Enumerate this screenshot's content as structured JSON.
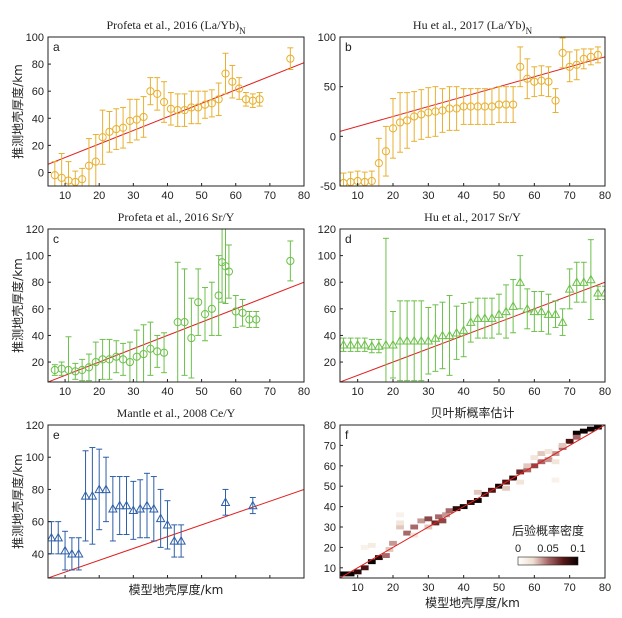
{
  "figure": {
    "y_axis_label": "推测地壳厚度/km",
    "x_axis_label": "模型地壳厚度/km",
    "colorbar": {
      "title": "后验概率密度",
      "ticks": [
        "0",
        "0.05",
        "0.1"
      ]
    },
    "colors": {
      "orange": "#E8B030",
      "green": "#6CC04A",
      "blue": "#2E5FA8",
      "red": "#E02020"
    }
  },
  "chart_data": [
    {
      "panel": "a",
      "type": "scatter",
      "marker": "circle",
      "color": "#E8B030",
      "title": "Profeta et al., 2016 (La/Yb)",
      "title_sub": "N",
      "xlim": [
        5,
        80
      ],
      "ylim": [
        -10,
        100
      ],
      "xticks": [
        10,
        20,
        30,
        40,
        50,
        60,
        70,
        80
      ],
      "yticks": [
        0,
        20,
        40,
        60,
        80,
        100
      ],
      "show_x_tick_labels": true,
      "show_x_label": false,
      "show_y_label": true,
      "x": [
        7,
        9,
        11,
        13,
        15,
        17,
        19,
        21,
        23,
        25,
        27,
        29,
        31,
        33,
        35,
        37,
        39,
        41,
        43,
        45,
        47,
        49,
        51,
        53,
        55,
        57,
        59,
        61,
        63,
        65,
        67,
        76
      ],
      "y": [
        -2,
        -4,
        -6,
        -7,
        -5,
        5,
        8,
        26,
        30,
        32,
        33,
        38,
        39,
        41,
        60,
        58,
        52,
        47,
        46,
        46,
        48,
        48,
        50,
        51,
        54,
        73,
        67,
        62,
        54,
        53,
        54,
        84
      ],
      "err": [
        10,
        18,
        14,
        8,
        8,
        20,
        20,
        20,
        15,
        15,
        15,
        16,
        15,
        15,
        10,
        12,
        15,
        12,
        12,
        12,
        12,
        12,
        10,
        10,
        12,
        15,
        12,
        8,
        5,
        5,
        5,
        8
      ],
      "fit_line": [
        [
          5,
          6
        ],
        [
          80,
          81
        ]
      ]
    },
    {
      "panel": "b",
      "type": "scatter",
      "marker": "circle",
      "color": "#E8B030",
      "title": "Hu et al., 2017 (La/Yb)",
      "title_sub": "N",
      "xlim": [
        5,
        80
      ],
      "ylim": [
        -50,
        100
      ],
      "xticks": [
        10,
        20,
        30,
        40,
        50,
        60,
        70,
        80
      ],
      "yticks": [
        -50,
        0,
        50,
        100
      ],
      "show_x_tick_labels": true,
      "show_x_label": false,
      "show_y_label": false,
      "x": [
        6,
        8,
        10,
        12,
        14,
        16,
        18,
        20,
        22,
        24,
        26,
        28,
        30,
        32,
        34,
        36,
        38,
        40,
        42,
        44,
        46,
        48,
        50,
        52,
        54,
        56,
        58,
        60,
        62,
        64,
        66,
        68,
        70,
        72,
        74,
        76,
        78
      ],
      "y": [
        -47,
        -46,
        -45,
        -46,
        -45,
        -27,
        -15,
        8,
        14,
        16,
        20,
        22,
        24,
        25,
        26,
        28,
        28,
        30,
        30,
        30,
        30,
        30,
        32,
        32,
        32,
        70,
        58,
        55,
        56,
        55,
        36,
        84,
        70,
        72,
        78,
        80,
        82
      ],
      "err": [
        10,
        10,
        10,
        10,
        10,
        25,
        25,
        30,
        30,
        28,
        25,
        25,
        25,
        25,
        22,
        22,
        22,
        18,
        18,
        18,
        18,
        18,
        18,
        18,
        18,
        20,
        20,
        15,
        15,
        15,
        12,
        15,
        15,
        15,
        10,
        8,
        8
      ],
      "fit_line": [
        [
          5,
          5
        ],
        [
          80,
          80
        ]
      ]
    },
    {
      "panel": "c",
      "type": "scatter",
      "marker": "circle",
      "color": "#6CC04A",
      "title": "Profeta et al., 2016 Sr/Y",
      "xlim": [
        5,
        80
      ],
      "ylim": [
        5,
        120
      ],
      "xticks": [
        10,
        20,
        30,
        40,
        50,
        60,
        70,
        80
      ],
      "yticks": [
        20,
        40,
        60,
        80,
        100,
        120
      ],
      "show_x_tick_labels": true,
      "show_x_label": false,
      "show_y_label": true,
      "x": [
        7,
        9,
        11,
        13,
        15,
        17,
        19,
        21,
        23,
        25,
        27,
        29,
        31,
        33,
        35,
        37,
        39,
        43,
        45,
        47,
        49,
        51,
        53,
        55,
        56,
        57,
        58,
        60,
        62,
        64,
        66,
        76
      ],
      "y": [
        14,
        15,
        14,
        13,
        14,
        16,
        20,
        22,
        22,
        24,
        22,
        20,
        24,
        26,
        30,
        28,
        27,
        50,
        50,
        38,
        65,
        56,
        60,
        70,
        95,
        92,
        88,
        58,
        57,
        52,
        52,
        96
      ],
      "err": [
        4,
        5,
        25,
        6,
        8,
        10,
        15,
        15,
        15,
        12,
        12,
        15,
        20,
        22,
        20,
        12,
        15,
        45,
        40,
        30,
        25,
        20,
        20,
        30,
        30,
        28,
        20,
        12,
        10,
        6,
        6,
        15
      ],
      "fit_line": [
        [
          5,
          5
        ],
        [
          80,
          80
        ]
      ]
    },
    {
      "panel": "d",
      "type": "scatter",
      "marker": "triangle",
      "color": "#6CC04A",
      "title": "Hu et al., 2017 Sr/Y",
      "xlim": [
        5,
        80
      ],
      "ylim": [
        5,
        120
      ],
      "xticks": [
        10,
        20,
        30,
        40,
        50,
        60,
        70,
        80
      ],
      "yticks": [
        20,
        40,
        60,
        80,
        100,
        120
      ],
      "show_x_tick_labels": true,
      "show_x_label": false,
      "show_y_label": false,
      "x": [
        6,
        8,
        10,
        12,
        14,
        16,
        18,
        20,
        22,
        24,
        26,
        28,
        30,
        32,
        34,
        36,
        38,
        40,
        42,
        44,
        46,
        48,
        50,
        52,
        54,
        56,
        58,
        60,
        62,
        64,
        66,
        68,
        70,
        72,
        74,
        76,
        78,
        80
      ],
      "y": [
        33,
        33,
        33,
        33,
        32,
        32,
        33,
        33,
        36,
        36,
        36,
        36,
        36,
        38,
        40,
        40,
        42,
        44,
        50,
        53,
        53,
        53,
        56,
        58,
        62,
        80,
        60,
        58,
        58,
        56,
        56,
        50,
        75,
        80,
        80,
        82,
        72,
        72
      ],
      "err": [
        5,
        5,
        5,
        5,
        5,
        5,
        80,
        25,
        30,
        30,
        30,
        30,
        25,
        25,
        25,
        30,
        20,
        20,
        15,
        15,
        15,
        15,
        15,
        20,
        20,
        20,
        15,
        15,
        15,
        15,
        10,
        10,
        15,
        15,
        15,
        30,
        5,
        5
      ],
      "fit_line": [
        [
          5,
          5
        ],
        [
          80,
          80
        ]
      ]
    },
    {
      "panel": "e",
      "type": "scatter",
      "marker": "triangle",
      "color": "#2E5FA8",
      "title": "Mantle et al., 2008 Ce/Y",
      "xlim": [
        5,
        80
      ],
      "ylim": [
        25,
        120
      ],
      "xticks": [
        10,
        20,
        30,
        40,
        50,
        60,
        70,
        80
      ],
      "yticks": [
        40,
        60,
        80,
        100,
        120
      ],
      "show_x_tick_labels": false,
      "show_x_label": true,
      "show_y_label": true,
      "x": [
        6,
        8,
        10,
        12,
        14,
        16,
        18,
        20,
        22,
        24,
        26,
        28,
        30,
        32,
        34,
        36,
        38,
        40,
        42,
        44,
        57,
        65
      ],
      "y": [
        50,
        50,
        42,
        40,
        40,
        76,
        76,
        80,
        80,
        68,
        70,
        70,
        67,
        68,
        70,
        68,
        62,
        58,
        48,
        48,
        72,
        70
      ],
      "err": [
        10,
        10,
        12,
        10,
        10,
        28,
        30,
        25,
        20,
        20,
        18,
        18,
        18,
        18,
        20,
        20,
        18,
        15,
        10,
        10,
        8,
        5
      ],
      "fit_line": [
        [
          5,
          25
        ],
        [
          80,
          80
        ]
      ]
    },
    {
      "panel": "f",
      "type": "heatmap",
      "title": "贝叶斯概率估计",
      "xlim": [
        5,
        80
      ],
      "ylim": [
        5,
        80
      ],
      "xticks": [
        10,
        20,
        30,
        40,
        50,
        60,
        70,
        80
      ],
      "yticks": [
        10,
        20,
        30,
        40,
        50,
        60,
        70,
        80
      ],
      "show_x_tick_labels": true,
      "show_x_label": true,
      "show_y_label": false,
      "colormap": [
        "#FFFFFF",
        "#EFDFD0",
        "#A8686A",
        "#5A1818",
        "#0A0000"
      ],
      "vmax": 0.1,
      "cells": [
        [
          6,
          7,
          0.1
        ],
        [
          8,
          7,
          0.1
        ],
        [
          10,
          8,
          0.09
        ],
        [
          12,
          10,
          0.08
        ],
        [
          14,
          13,
          0.1
        ],
        [
          16,
          15,
          0.09
        ],
        [
          18,
          16,
          0.05
        ],
        [
          19,
          19,
          0.03
        ],
        [
          20,
          22,
          0.04
        ],
        [
          22,
          36,
          0.01
        ],
        [
          22,
          30,
          0.03
        ],
        [
          24,
          27,
          0.05
        ],
        [
          26,
          30,
          0.05
        ],
        [
          28,
          33,
          0.04
        ],
        [
          30,
          34,
          0.06
        ],
        [
          32,
          32,
          0.07
        ],
        [
          33,
          35,
          0.05
        ],
        [
          34,
          33,
          0.06
        ],
        [
          35,
          36,
          0.04
        ],
        [
          36,
          38,
          0.05
        ],
        [
          38,
          39,
          0.09
        ],
        [
          40,
          40,
          0.1
        ],
        [
          42,
          42,
          0.09
        ],
        [
          44,
          43,
          0.1
        ],
        [
          46,
          46,
          0.09
        ],
        [
          48,
          48,
          0.08
        ],
        [
          50,
          50,
          0.1
        ],
        [
          52,
          52,
          0.08
        ],
        [
          54,
          54,
          0.09
        ],
        [
          56,
          57,
          0.07
        ],
        [
          58,
          58,
          0.05
        ],
        [
          60,
          60,
          0.06
        ],
        [
          62,
          62,
          0.05
        ],
        [
          64,
          63,
          0.04
        ],
        [
          66,
          66,
          0.04
        ],
        [
          68,
          69,
          0.05
        ],
        [
          70,
          72,
          0.08
        ],
        [
          72,
          76,
          0.1
        ],
        [
          74,
          77,
          0.1
        ],
        [
          76,
          78,
          0.1
        ],
        [
          78,
          79,
          0.1
        ],
        [
          12,
          20,
          0.01
        ],
        [
          14,
          21,
          0.015
        ],
        [
          22,
          32,
          0.02
        ],
        [
          26,
          26,
          0.02
        ],
        [
          30,
          30,
          0.03
        ],
        [
          44,
          47,
          0.03
        ],
        [
          52,
          49,
          0.03
        ],
        [
          56,
          52,
          0.02
        ],
        [
          58,
          60,
          0.03
        ],
        [
          60,
          64,
          0.02
        ],
        [
          62,
          66,
          0.03
        ],
        [
          64,
          67,
          0.02
        ],
        [
          66,
          62,
          0.02
        ],
        [
          68,
          70,
          0.03
        ],
        [
          72,
          74,
          0.05
        ],
        [
          66,
          53,
          0.01
        ]
      ],
      "fit_line": [
        [
          5,
          5
        ],
        [
          80,
          80
        ]
      ]
    }
  ]
}
